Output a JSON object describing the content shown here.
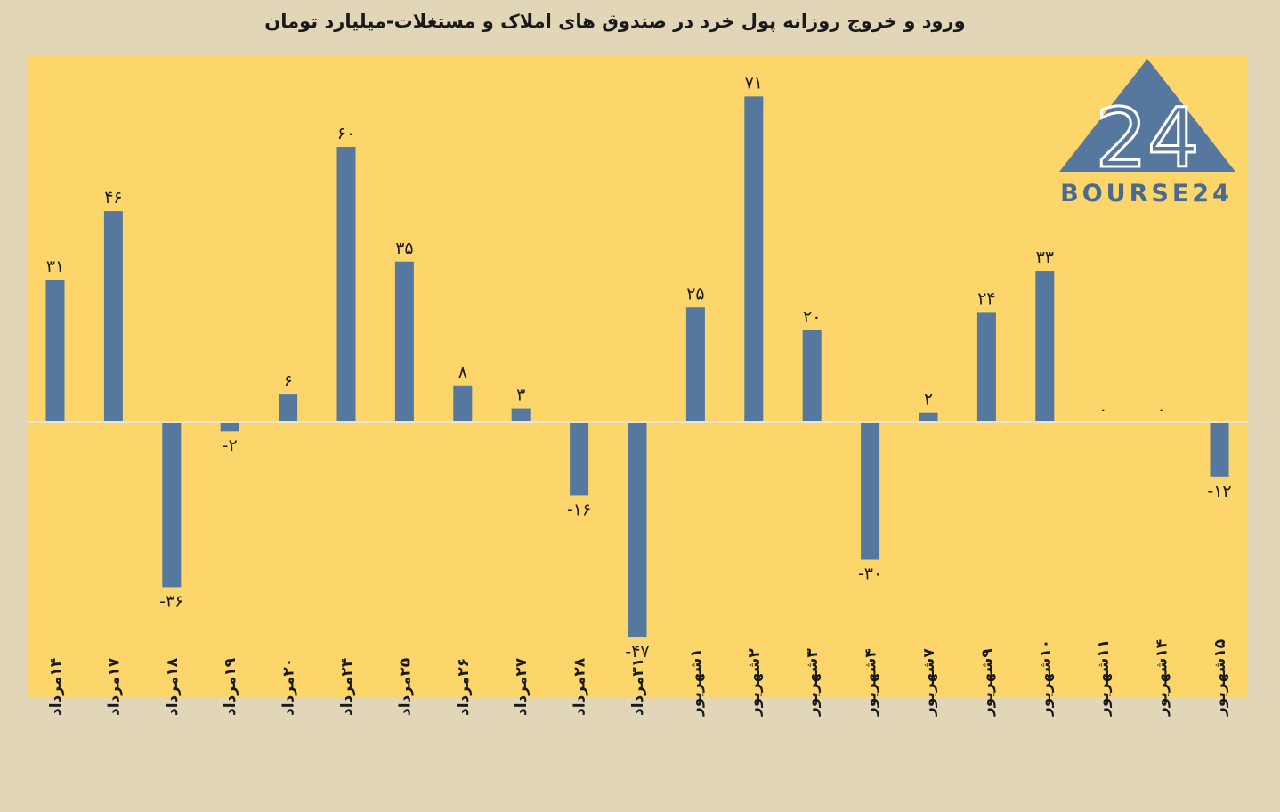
{
  "chart_data": {
    "type": "bar",
    "title": "ورود و خروج روزانه پول خرد در صندوق های املاک و مستغلات-میلیارد تومان",
    "categories": [
      "۱۴مرداد",
      "۱۷مرداد",
      "۱۸مرداد",
      "۱۹مرداد",
      "۲۰مرداد",
      "۲۴مرداد",
      "۲۵مرداد",
      "۲۶مرداد",
      "۲۷مرداد",
      "۲۸مرداد",
      "۳۱مرداد",
      "۱شهریور",
      "۲شهریور",
      "۳شهریور",
      "۴شهریور",
      "۷شهریور",
      "۹شهریور",
      "۱۰شهریور",
      "۱۱شهریور",
      "۱۴شهریور",
      "۱۵شهریور"
    ],
    "values": [
      31,
      46,
      -36,
      -2,
      6,
      60,
      35,
      8,
      3,
      -16,
      -47,
      25,
      71,
      20,
      -30,
      2,
      24,
      33,
      0,
      0,
      -12
    ],
    "value_labels": [
      "۳۱",
      "۴۶",
      "-۳۶",
      "-۲",
      "۶",
      "۶۰",
      "۳۵",
      "۸",
      "۳",
      "-۱۶",
      "-۴۷",
      "۲۵",
      "۷۱",
      "۲۰",
      "-۳۰",
      "۲",
      "۲۴",
      "۳۳",
      "۰",
      "۰",
      "-۱۲"
    ],
    "ylim": [
      -60,
      80
    ],
    "grid": false,
    "legend": "none",
    "colors": {
      "bar": "#56779e",
      "plot_bg": "#fcd56b",
      "page_bg": "#e2d6b8",
      "zero_line": "#e9e3d2"
    }
  },
  "logo": {
    "text": "BOURSE24",
    "mark": "24",
    "color": "#56779e",
    "icon": "triangle-logo-icon"
  }
}
